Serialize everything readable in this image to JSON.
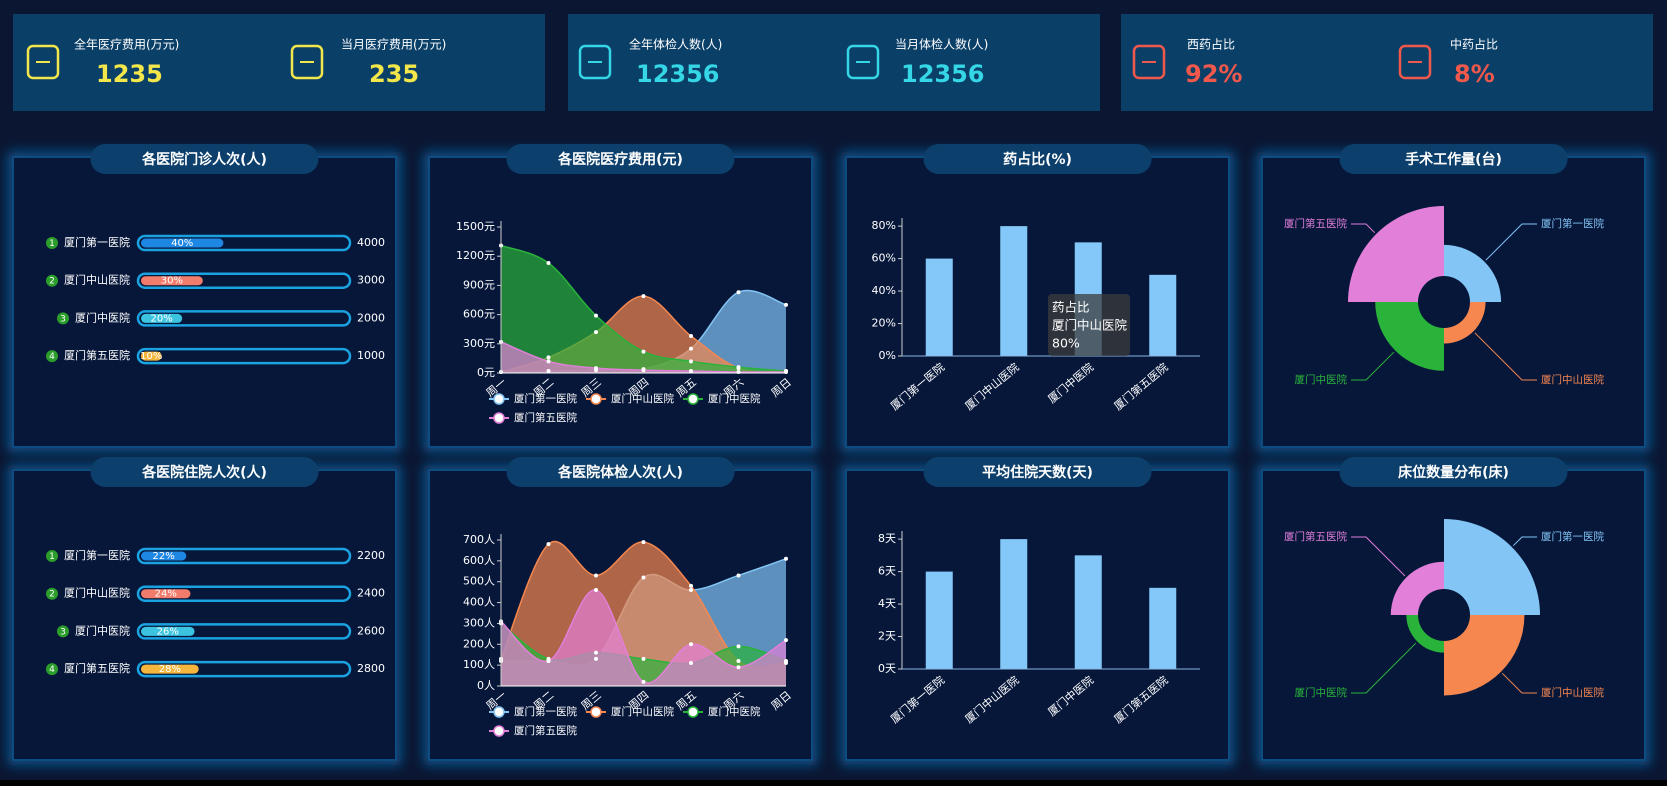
{
  "kpis": [
    {
      "color": "#f2e64a",
      "items": [
        {
          "label": "全年医疗费用(万元)",
          "value": 1235
        },
        {
          "label": "当月医疗费用(万元)",
          "value": 235
        }
      ]
    },
    {
      "color": "#35d6e6",
      "items": [
        {
          "label": "全年体检人数(人)",
          "value": 12356
        },
        {
          "label": "当月体检人数(人)",
          "value": 12356
        }
      ]
    },
    {
      "color": "#f0584b",
      "items": [
        {
          "label": "西药占比",
          "value": "92%"
        },
        {
          "label": "中药占比",
          "value": "8%"
        }
      ]
    }
  ],
  "chart_data": [
    {
      "type": "progress",
      "title": "各医院门诊人次(人)",
      "categories": [
        "厦门第一医院",
        "厦门中山医院",
        "厦门中医院",
        "厦门第五医院"
      ],
      "ranks": [
        1,
        2,
        3,
        4
      ],
      "percents": [
        40,
        30,
        20,
        10
      ],
      "percent_labels": [
        "40%",
        "30%",
        "20%",
        "10%"
      ],
      "values": [
        4000,
        3000,
        2000,
        1000
      ],
      "colors": [
        "#1e86e3",
        "#f17c6b",
        "#3cc3e0",
        "#f4b63d"
      ],
      "xlim": [
        0,
        100
      ]
    },
    {
      "type": "area",
      "title": "各医院医疗费用(元)",
      "x": [
        "周一",
        "周二",
        "周三",
        "周四",
        "周五",
        "周六",
        "周日"
      ],
      "ylim": [
        0,
        1500
      ],
      "yticks": [
        {
          "value": 0,
          "label": "0元"
        },
        {
          "value": 300,
          "label": "300元"
        },
        {
          "value": 600,
          "label": "600元"
        },
        {
          "value": 900,
          "label": "900元"
        },
        {
          "value": 1200,
          "label": "1200元"
        },
        {
          "value": 1500,
          "label": "1500元"
        }
      ],
      "series": [
        {
          "name": "厦门第一医院",
          "color": "#83c5f5",
          "values": [
            10,
            20,
            30,
            40,
            250,
            830,
            700
          ]
        },
        {
          "name": "厦门中山医院",
          "color": "#f5874f",
          "values": [
            10,
            160,
            420,
            790,
            380,
            50,
            20
          ]
        },
        {
          "name": "厦门中医院",
          "color": "#29b33a",
          "values": [
            1310,
            1130,
            590,
            220,
            120,
            60,
            20
          ]
        },
        {
          "name": "厦门第五医院",
          "color": "#e27fd9",
          "values": [
            320,
            120,
            50,
            30,
            20,
            10,
            10
          ]
        }
      ],
      "legend": "bottom"
    },
    {
      "type": "bar",
      "title": "药占比(%)",
      "categories": [
        "厦门第一医院",
        "厦门中山医院",
        "厦门中医院",
        "厦门第五医院"
      ],
      "values": [
        60,
        80,
        70,
        50
      ],
      "color": "#83c8f8",
      "ylim": [
        0,
        85
      ],
      "yticks": [
        {
          "value": 0,
          "label": "0%"
        },
        {
          "value": 20,
          "label": "20%"
        },
        {
          "value": 40,
          "label": "40%"
        },
        {
          "value": 60,
          "label": "60%"
        },
        {
          "value": 80,
          "label": "80%"
        }
      ],
      "tooltip": {
        "title": "药占比",
        "category": "厦门中山医院",
        "value": "80%"
      }
    },
    {
      "type": "rose",
      "title": "手术工作量(台)",
      "categories": [
        "厦门第一医院",
        "厦门中山医院",
        "厦门中医院",
        "厦门第五医院"
      ],
      "values": [
        40,
        20,
        55,
        90
      ],
      "colors": [
        "#83c5f5",
        "#f5874f",
        "#29b33a",
        "#e27fd9"
      ]
    },
    {
      "type": "progress",
      "title": "各医院住院人次(人)",
      "categories": [
        "厦门第一医院",
        "厦门中山医院",
        "厦门中医院",
        "厦门第五医院"
      ],
      "ranks": [
        1,
        2,
        3,
        4
      ],
      "percents": [
        22,
        24,
        26,
        28
      ],
      "percent_labels": [
        "22%",
        "24%",
        "26%",
        "28%"
      ],
      "values": [
        2200,
        2400,
        2600,
        2800
      ],
      "colors": [
        "#1e86e3",
        "#f17c6b",
        "#3cc3e0",
        "#f4b63d"
      ],
      "xlim": [
        0,
        100
      ]
    },
    {
      "type": "area",
      "title": "各医院体检人次(人)",
      "x": [
        "周一",
        "周二",
        "周三",
        "周四",
        "周五",
        "周六",
        "周日"
      ],
      "ylim": [
        0,
        700
      ],
      "yticks": [
        {
          "value": 0,
          "label": "0人"
        },
        {
          "value": 100,
          "label": "100人"
        },
        {
          "value": 200,
          "label": "200人"
        },
        {
          "value": 300,
          "label": "300人"
        },
        {
          "value": 400,
          "label": "400人"
        },
        {
          "value": 500,
          "label": "500人"
        },
        {
          "value": 600,
          "label": "600人"
        },
        {
          "value": 700,
          "label": "700人"
        }
      ],
      "series": [
        {
          "name": "厦门第一医院",
          "color": "#83c5f5",
          "values": [
            120,
            120,
            130,
            520,
            460,
            530,
            610
          ]
        },
        {
          "name": "厦门中山医院",
          "color": "#f5874f",
          "values": [
            130,
            680,
            530,
            690,
            480,
            120,
            110
          ]
        },
        {
          "name": "厦门中医院",
          "color": "#29b33a",
          "values": [
            300,
            130,
            160,
            130,
            110,
            190,
            120
          ]
        },
        {
          "name": "厦门第五医院",
          "color": "#e27fd9",
          "values": [
            310,
            120,
            460,
            20,
            200,
            90,
            220
          ]
        }
      ],
      "legend": "bottom"
    },
    {
      "type": "bar",
      "title": "平均住院天数(天)",
      "categories": [
        "厦门第一医院",
        "厦门中山医院",
        "厦门中医院",
        "厦门第五医院"
      ],
      "values": [
        6,
        8,
        7,
        5
      ],
      "color": "#83c8f8",
      "ylim": [
        0,
        8.5
      ],
      "yticks": [
        {
          "value": 0,
          "label": "0天"
        },
        {
          "value": 2,
          "label": "2天"
        },
        {
          "value": 4,
          "label": "4天"
        },
        {
          "value": 6,
          "label": "6天"
        },
        {
          "value": 8,
          "label": "8天"
        }
      ]
    },
    {
      "type": "rose",
      "title": "床位数量分布(床)",
      "categories": [
        "厦门第一医院",
        "厦门中山医院",
        "厦门中医院",
        "厦门第五医院"
      ],
      "values": [
        90,
        70,
        15,
        35
      ],
      "colors": [
        "#83c5f5",
        "#f5874f",
        "#29b33a",
        "#e27fd9"
      ]
    }
  ]
}
